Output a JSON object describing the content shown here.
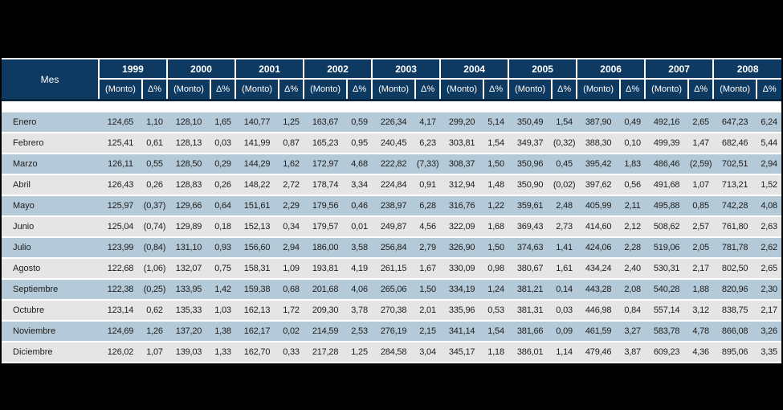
{
  "table": {
    "mes_label": "Mes",
    "monto_label": "(Monto)",
    "delta_label": "Δ%",
    "months": [
      "Enero",
      "Febrero",
      "Marzo",
      "Abril",
      "Mayo",
      "Junio",
      "Julio",
      "Agosto",
      "Septiembre",
      "Octubre",
      "Noviembre",
      "Diciembre"
    ],
    "columns": [
      {
        "year": "1999",
        "monto": [
          "124,65",
          "125,41",
          "126,11",
          "126,43",
          "125,97",
          "125,04",
          "123,99",
          "122,68",
          "122,38",
          "123,14",
          "124,69",
          "126,02"
        ],
        "delta": [
          "1,10",
          "0,61",
          "0,55",
          "0,26",
          "(0,37)",
          "(0,74)",
          "(0,84)",
          "(1,06)",
          "(0,25)",
          "0,62",
          "1,26",
          "1,07"
        ]
      },
      {
        "year": "2000",
        "monto": [
          "128,10",
          "128,13",
          "128,50",
          "128,83",
          "129,66",
          "129,89",
          "131,10",
          "132,07",
          "133,95",
          "135,33",
          "137,20",
          "139,03"
        ],
        "delta": [
          "1,65",
          "0,03",
          "0,29",
          "0,26",
          "0,64",
          "0,18",
          "0,93",
          "0,75",
          "1,42",
          "1,03",
          "1,38",
          "1,33"
        ]
      },
      {
        "year": "2001",
        "monto": [
          "140,77",
          "141,99",
          "144,29",
          "148,22",
          "151,61",
          "152,13",
          "156,60",
          "158,31",
          "159,38",
          "162,13",
          "162,17",
          "162,70"
        ],
        "delta": [
          "1,25",
          "0,87",
          "1,62",
          "2,72",
          "2,29",
          "0,34",
          "2,94",
          "1,09",
          "0,68",
          "1,72",
          "0,02",
          "0,33"
        ]
      },
      {
        "year": "2002",
        "monto": [
          "163,67",
          "165,23",
          "172,97",
          "178,74",
          "179,56",
          "179,57",
          "186,00",
          "193,81",
          "201,68",
          "209,30",
          "214,59",
          "217,28"
        ],
        "delta": [
          "0,59",
          "0,95",
          "4,68",
          "3,34",
          "0,46",
          "0,01",
          "3,58",
          "4,19",
          "4,06",
          "3,78",
          "2,53",
          "1,25"
        ]
      },
      {
        "year": "2003",
        "monto": [
          "226,34",
          "240,45",
          "222,82",
          "224,84",
          "238,97",
          "249,87",
          "256,84",
          "261,15",
          "265,06",
          "270,38",
          "276,19",
          "284,58"
        ],
        "delta": [
          "4,17",
          "6,23",
          "(7,33)",
          "0,91",
          "6,28",
          "4,56",
          "2,79",
          "1,67",
          "1,50",
          "2,01",
          "2,15",
          "3,04"
        ]
      },
      {
        "year": "2004",
        "monto": [
          "299,20",
          "303,81",
          "308,37",
          "312,94",
          "316,76",
          "322,09",
          "326,90",
          "330,09",
          "334,19",
          "335,96",
          "341,14",
          "345,17"
        ],
        "delta": [
          "5,14",
          "1,54",
          "1,50",
          "1,48",
          "1,22",
          "1,68",
          "1,50",
          "0,98",
          "1,24",
          "0,53",
          "1,54",
          "1,18"
        ]
      },
      {
        "year": "2005",
        "monto": [
          "350,49",
          "349,37",
          "350,96",
          "350,90",
          "359,61",
          "369,43",
          "374,63",
          "380,67",
          "381,21",
          "381,31",
          "381,66",
          "386,01"
        ],
        "delta": [
          "1,54",
          "(0,32)",
          "0,45",
          "(0,02)",
          "2,48",
          "2,73",
          "1,41",
          "1,61",
          "0,14",
          "0,03",
          "0,09",
          "1,14"
        ]
      },
      {
        "year": "2006",
        "monto": [
          "387,90",
          "388,30",
          "395,42",
          "397,62",
          "405,99",
          "414,60",
          "424,06",
          "434,24",
          "443,28",
          "446,98",
          "461,59",
          "479,46"
        ],
        "delta": [
          "0,49",
          "0,10",
          "1,83",
          "0,56",
          "2,11",
          "2,12",
          "2,28",
          "2,40",
          "2,08",
          "0,84",
          "3,27",
          "3,87"
        ]
      },
      {
        "year": "2007",
        "monto": [
          "492,16",
          "499,39",
          "486,46",
          "491,68",
          "495,88",
          "508,62",
          "519,06",
          "530,31",
          "540,28",
          "557,14",
          "583,78",
          "609,23"
        ],
        "delta": [
          "2,65",
          "1,47",
          "(2,59)",
          "1,07",
          "0,85",
          "2,57",
          "2,05",
          "2,17",
          "1,88",
          "3,12",
          "4,78",
          "4,36"
        ]
      },
      {
        "year": "2008",
        "monto": [
          "647,23",
          "682,46",
          "702,51",
          "713,21",
          "742,28",
          "761,80",
          "781,78",
          "802,50",
          "820,96",
          "838,75",
          "866,08",
          "895,06"
        ],
        "delta": [
          "6,24",
          "5,44",
          "2,94",
          "1,52",
          "4,08",
          "2,63",
          "2,62",
          "2,65",
          "2,30",
          "2,17",
          "3,26",
          "3,35"
        ]
      }
    ]
  },
  "colors": {
    "background": "#000000",
    "header_navy": "#0e3a62",
    "header_border_dark": "#0a2742",
    "row_blue": "#b5cad8",
    "row_gray": "#e5e5e5",
    "separator_white": "#ffffff",
    "text_dark": "#1c1c1c",
    "header_text": "#ffffff"
  }
}
